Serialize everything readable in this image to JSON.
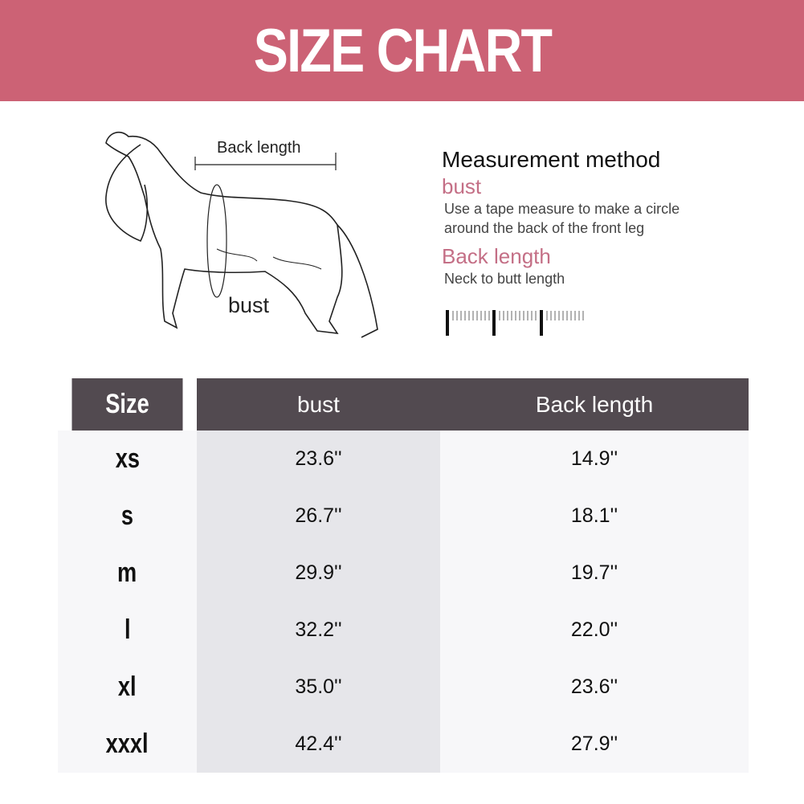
{
  "title": "SIZE CHART",
  "diagram": {
    "back_length_label": "Back length",
    "bust_label": "bust"
  },
  "method": {
    "title": "Measurement method",
    "bust_heading": "bust",
    "bust_desc_1": "Use a tape measure to make a circle",
    "bust_desc_2": "around the back of the front leg",
    "back_heading": "Back length",
    "back_desc": "Neck to butt length"
  },
  "table": {
    "headers": [
      "Size",
      "bust",
      "Back length"
    ],
    "rows": [
      [
        "xs",
        "23.6''",
        "14.9''"
      ],
      [
        "s",
        "26.7''",
        "18.1''"
      ],
      [
        "m",
        "29.9''",
        "19.7''"
      ],
      [
        "l",
        "32.2''",
        "22.0''"
      ],
      [
        "xl",
        "35.0''",
        "23.6''"
      ],
      [
        "xxxl",
        "42.4''",
        "27.9''"
      ]
    ]
  },
  "colors": {
    "banner": "#cc6275",
    "header": "#524a50",
    "accent": "#c46f86"
  }
}
